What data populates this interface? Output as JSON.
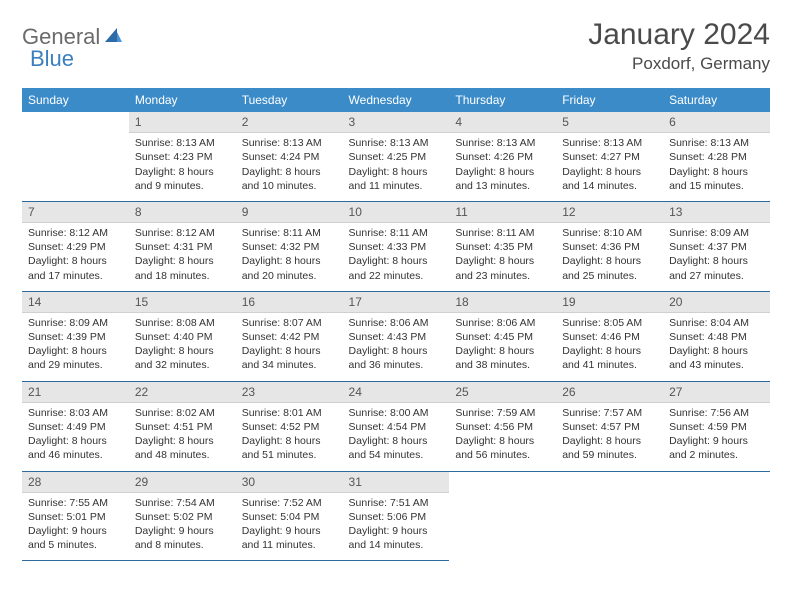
{
  "brand": {
    "text1": "General",
    "text2": "Blue"
  },
  "title": "January 2024",
  "location": "Poxdorf, Germany",
  "colors": {
    "header_bg": "#3b8bc9",
    "header_text": "#ffffff",
    "daynum_bg": "#e6e6e6",
    "row_divider": "#2f6a9e",
    "logo_gray": "#6b6b6b",
    "logo_blue": "#3b7fbf"
  },
  "days_of_week": [
    "Sunday",
    "Monday",
    "Tuesday",
    "Wednesday",
    "Thursday",
    "Friday",
    "Saturday"
  ],
  "weeks": [
    [
      null,
      {
        "n": "1",
        "sr": "Sunrise: 8:13 AM",
        "ss": "Sunset: 4:23 PM",
        "dl": "Daylight: 8 hours and 9 minutes."
      },
      {
        "n": "2",
        "sr": "Sunrise: 8:13 AM",
        "ss": "Sunset: 4:24 PM",
        "dl": "Daylight: 8 hours and 10 minutes."
      },
      {
        "n": "3",
        "sr": "Sunrise: 8:13 AM",
        "ss": "Sunset: 4:25 PM",
        "dl": "Daylight: 8 hours and 11 minutes."
      },
      {
        "n": "4",
        "sr": "Sunrise: 8:13 AM",
        "ss": "Sunset: 4:26 PM",
        "dl": "Daylight: 8 hours and 13 minutes."
      },
      {
        "n": "5",
        "sr": "Sunrise: 8:13 AM",
        "ss": "Sunset: 4:27 PM",
        "dl": "Daylight: 8 hours and 14 minutes."
      },
      {
        "n": "6",
        "sr": "Sunrise: 8:13 AM",
        "ss": "Sunset: 4:28 PM",
        "dl": "Daylight: 8 hours and 15 minutes."
      }
    ],
    [
      {
        "n": "7",
        "sr": "Sunrise: 8:12 AM",
        "ss": "Sunset: 4:29 PM",
        "dl": "Daylight: 8 hours and 17 minutes."
      },
      {
        "n": "8",
        "sr": "Sunrise: 8:12 AM",
        "ss": "Sunset: 4:31 PM",
        "dl": "Daylight: 8 hours and 18 minutes."
      },
      {
        "n": "9",
        "sr": "Sunrise: 8:11 AM",
        "ss": "Sunset: 4:32 PM",
        "dl": "Daylight: 8 hours and 20 minutes."
      },
      {
        "n": "10",
        "sr": "Sunrise: 8:11 AM",
        "ss": "Sunset: 4:33 PM",
        "dl": "Daylight: 8 hours and 22 minutes."
      },
      {
        "n": "11",
        "sr": "Sunrise: 8:11 AM",
        "ss": "Sunset: 4:35 PM",
        "dl": "Daylight: 8 hours and 23 minutes."
      },
      {
        "n": "12",
        "sr": "Sunrise: 8:10 AM",
        "ss": "Sunset: 4:36 PM",
        "dl": "Daylight: 8 hours and 25 minutes."
      },
      {
        "n": "13",
        "sr": "Sunrise: 8:09 AM",
        "ss": "Sunset: 4:37 PM",
        "dl": "Daylight: 8 hours and 27 minutes."
      }
    ],
    [
      {
        "n": "14",
        "sr": "Sunrise: 8:09 AM",
        "ss": "Sunset: 4:39 PM",
        "dl": "Daylight: 8 hours and 29 minutes."
      },
      {
        "n": "15",
        "sr": "Sunrise: 8:08 AM",
        "ss": "Sunset: 4:40 PM",
        "dl": "Daylight: 8 hours and 32 minutes."
      },
      {
        "n": "16",
        "sr": "Sunrise: 8:07 AM",
        "ss": "Sunset: 4:42 PM",
        "dl": "Daylight: 8 hours and 34 minutes."
      },
      {
        "n": "17",
        "sr": "Sunrise: 8:06 AM",
        "ss": "Sunset: 4:43 PM",
        "dl": "Daylight: 8 hours and 36 minutes."
      },
      {
        "n": "18",
        "sr": "Sunrise: 8:06 AM",
        "ss": "Sunset: 4:45 PM",
        "dl": "Daylight: 8 hours and 38 minutes."
      },
      {
        "n": "19",
        "sr": "Sunrise: 8:05 AM",
        "ss": "Sunset: 4:46 PM",
        "dl": "Daylight: 8 hours and 41 minutes."
      },
      {
        "n": "20",
        "sr": "Sunrise: 8:04 AM",
        "ss": "Sunset: 4:48 PM",
        "dl": "Daylight: 8 hours and 43 minutes."
      }
    ],
    [
      {
        "n": "21",
        "sr": "Sunrise: 8:03 AM",
        "ss": "Sunset: 4:49 PM",
        "dl": "Daylight: 8 hours and 46 minutes."
      },
      {
        "n": "22",
        "sr": "Sunrise: 8:02 AM",
        "ss": "Sunset: 4:51 PM",
        "dl": "Daylight: 8 hours and 48 minutes."
      },
      {
        "n": "23",
        "sr": "Sunrise: 8:01 AM",
        "ss": "Sunset: 4:52 PM",
        "dl": "Daylight: 8 hours and 51 minutes."
      },
      {
        "n": "24",
        "sr": "Sunrise: 8:00 AM",
        "ss": "Sunset: 4:54 PM",
        "dl": "Daylight: 8 hours and 54 minutes."
      },
      {
        "n": "25",
        "sr": "Sunrise: 7:59 AM",
        "ss": "Sunset: 4:56 PM",
        "dl": "Daylight: 8 hours and 56 minutes."
      },
      {
        "n": "26",
        "sr": "Sunrise: 7:57 AM",
        "ss": "Sunset: 4:57 PM",
        "dl": "Daylight: 8 hours and 59 minutes."
      },
      {
        "n": "27",
        "sr": "Sunrise: 7:56 AM",
        "ss": "Sunset: 4:59 PM",
        "dl": "Daylight: 9 hours and 2 minutes."
      }
    ],
    [
      {
        "n": "28",
        "sr": "Sunrise: 7:55 AM",
        "ss": "Sunset: 5:01 PM",
        "dl": "Daylight: 9 hours and 5 minutes."
      },
      {
        "n": "29",
        "sr": "Sunrise: 7:54 AM",
        "ss": "Sunset: 5:02 PM",
        "dl": "Daylight: 9 hours and 8 minutes."
      },
      {
        "n": "30",
        "sr": "Sunrise: 7:52 AM",
        "ss": "Sunset: 5:04 PM",
        "dl": "Daylight: 9 hours and 11 minutes."
      },
      {
        "n": "31",
        "sr": "Sunrise: 7:51 AM",
        "ss": "Sunset: 5:06 PM",
        "dl": "Daylight: 9 hours and 14 minutes."
      },
      null,
      null,
      null
    ]
  ]
}
